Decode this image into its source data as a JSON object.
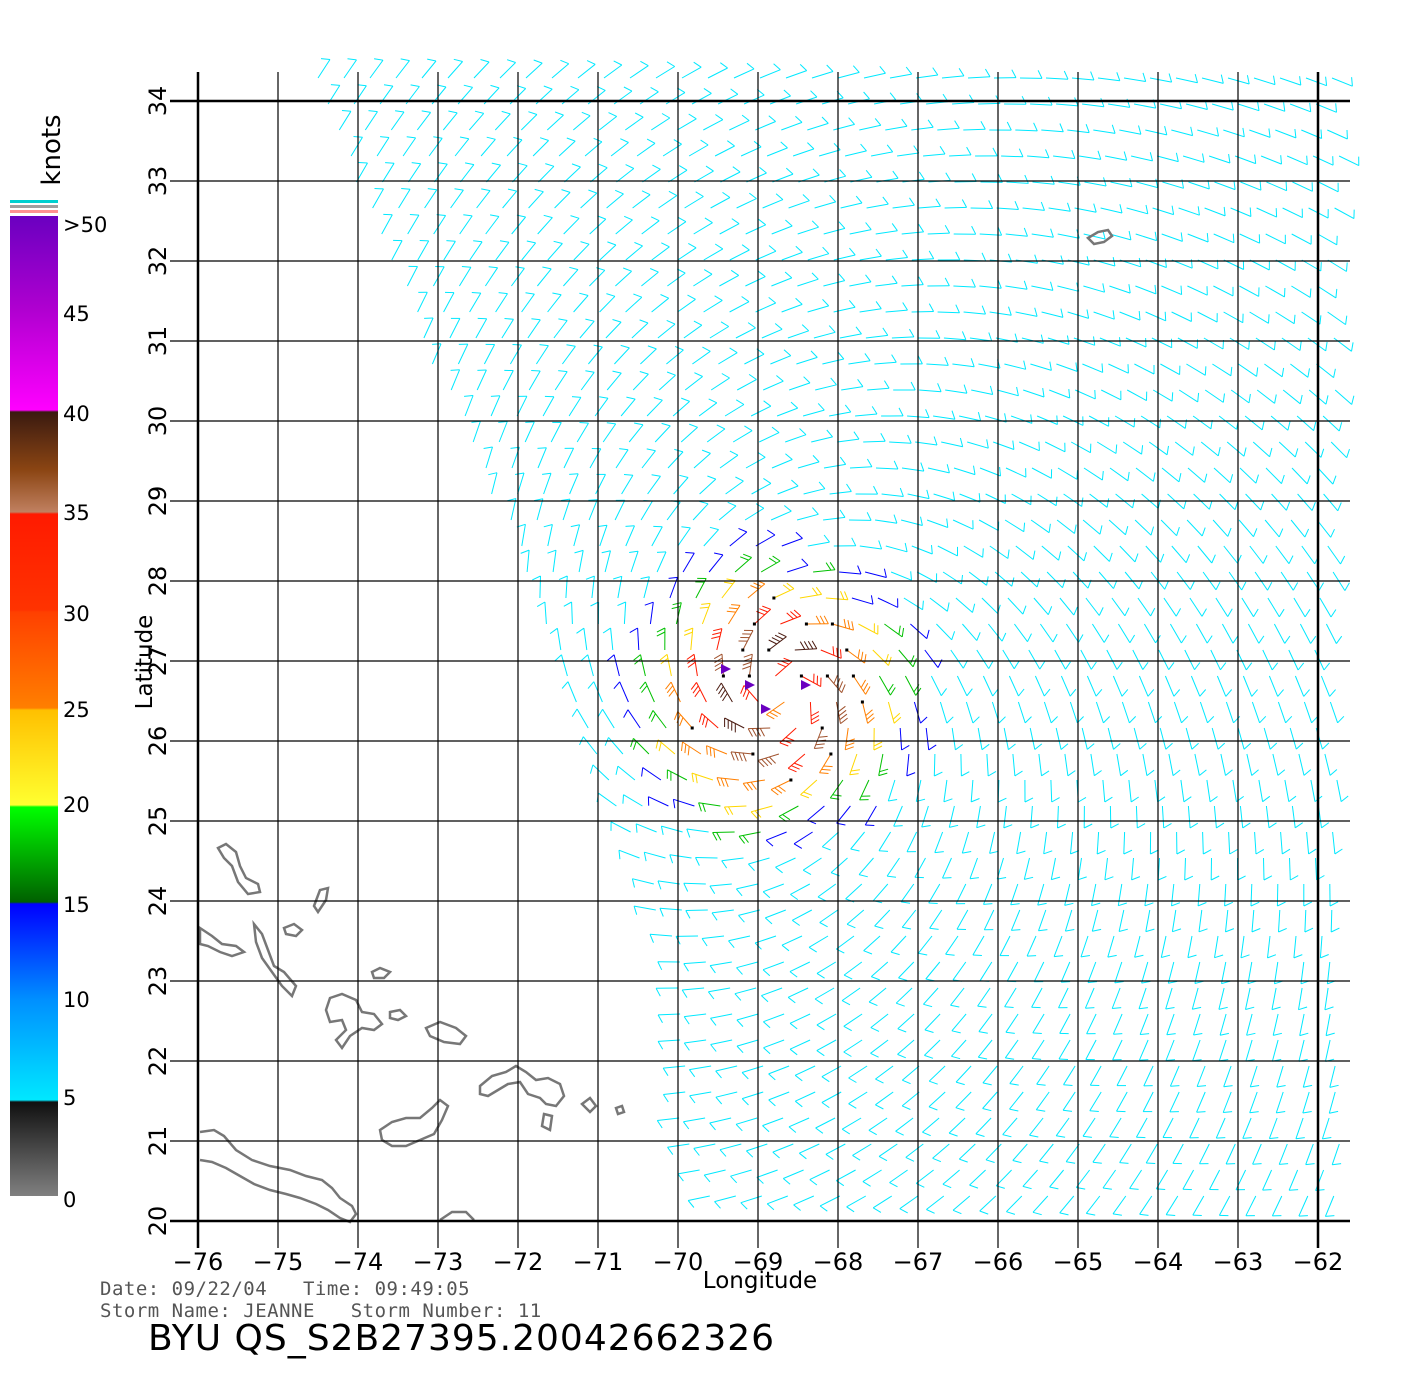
{
  "map": {
    "xlabel": "Longitude",
    "ylabel": "Latitude",
    "x_ticks": [
      "−76",
      "−75",
      "−74",
      "−73",
      "−72",
      "−71",
      "−70",
      "−69",
      "−68",
      "−67",
      "−66",
      "−65",
      "−64",
      "−63",
      "−62"
    ],
    "y_ticks": [
      "20",
      "21",
      "22",
      "23",
      "24",
      "25",
      "26",
      "27",
      "28",
      "29",
      "30",
      "31",
      "32",
      "33",
      "34"
    ],
    "lon_range": [
      -76,
      -62
    ],
    "lat_range": [
      20,
      34
    ],
    "grid": true,
    "storm_center": {
      "lon": -68.7,
      "lat": 26.6
    },
    "swath_left_edge": [
      [
        -74.5,
        34
      ],
      [
        -73.2,
        31
      ],
      [
        -72.3,
        29
      ],
      [
        -71.5,
        27
      ],
      [
        -70.7,
        25
      ],
      [
        -70,
        23
      ],
      [
        -70,
        21
      ],
      [
        -69.5,
        20
      ]
    ]
  },
  "legend": {
    "unit": "knots",
    "labels": [
      ">50",
      "45",
      "40",
      "35",
      "30",
      "25",
      "20",
      "15",
      "10",
      "5",
      "0"
    ],
    "colors": {
      "calm": "#808080",
      "light": "#00e8ff",
      "blue": "#0000ff",
      "green": "#00c000",
      "yellow": "#ffd700",
      "orange": "#ff7f00",
      "red": "#ff1a00",
      "brown": "#8b4513",
      "magenta": "#ff00ff",
      "purple": "#6a00c0"
    }
  },
  "footer": {
    "date_line": "Date: 09/22/04   Time: 09:49:05",
    "storm_line": "Storm Name: JEANNE   Storm Number: 11",
    "product_id": "BYU QS_S2B27395.20042662326"
  }
}
